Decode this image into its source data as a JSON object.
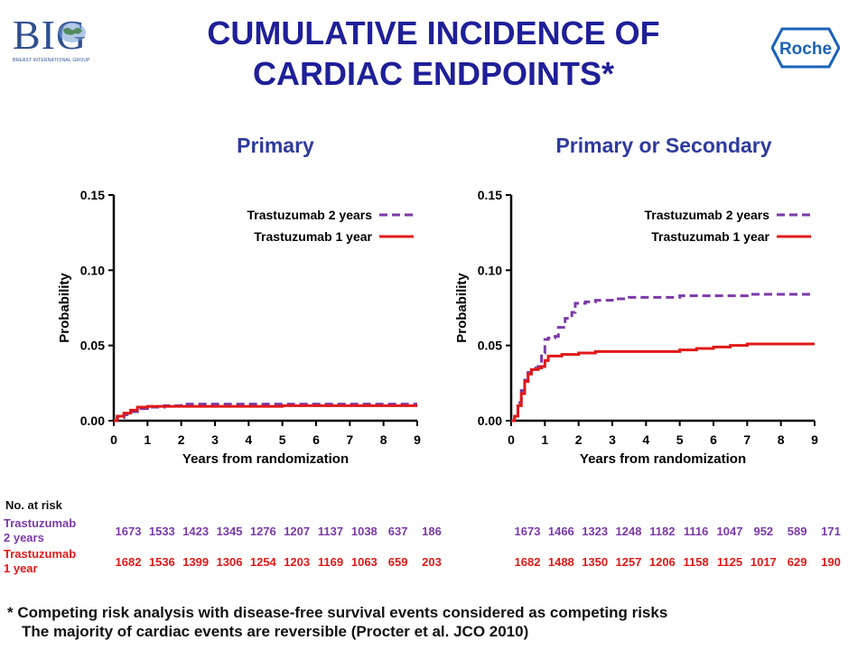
{
  "header": {
    "title": "CUMULATIVE INCIDENCE OF\nCARDIAC ENDPOINTS*",
    "left_logo_text": "BIG",
    "left_logo_sub": "BREAST INTERNATIONAL GROUP",
    "right_logo_text": "Roche"
  },
  "colors": {
    "title": "#1f1f99",
    "trastuzumab_2y": "#7b3aa8",
    "trastuzumab_1y": "#e01818",
    "roche": "#1c63b7"
  },
  "chart_data": [
    {
      "type": "line",
      "title": "Primary",
      "xlabel": "Years from randomization",
      "ylabel": "Probability",
      "xlim": [
        0,
        9
      ],
      "ylim": [
        0,
        0.15
      ],
      "xticks": [
        "0",
        "1",
        "2",
        "3",
        "4",
        "5",
        "6",
        "7",
        "8",
        "9"
      ],
      "yticks": [
        "0.00",
        "0.05",
        "0.10",
        "0.15"
      ],
      "legend_position": "top-right",
      "series": [
        {
          "name": "Trastuzumab 2 years",
          "style": "dashed",
          "x": [
            0,
            0.1,
            0.3,
            0.5,
            0.7,
            1.0,
            1.5,
            2.0,
            3.0,
            4.0,
            5.0,
            6.0,
            7.0,
            8.0,
            9.0
          ],
          "y": [
            0,
            0.002,
            0.004,
            0.006,
            0.008,
            0.009,
            0.01,
            0.011,
            0.011,
            0.011,
            0.011,
            0.011,
            0.011,
            0.011,
            0.011
          ]
        },
        {
          "name": "Trastuzumab 1 year",
          "style": "solid",
          "x": [
            0,
            0.1,
            0.3,
            0.5,
            0.7,
            1.0,
            1.5,
            2.0,
            3.0,
            4.0,
            5.0,
            6.0,
            7.0,
            8.0,
            9.0
          ],
          "y": [
            0,
            0.003,
            0.005,
            0.007,
            0.009,
            0.0095,
            0.0095,
            0.0095,
            0.0095,
            0.0095,
            0.01,
            0.01,
            0.01,
            0.01,
            0.01
          ]
        }
      ],
      "at_risk": {
        "trastuzumab_2y": [
          "1673",
          "1533",
          "1423",
          "1345",
          "1276",
          "1207",
          "1137",
          "1038",
          "637",
          "186"
        ],
        "trastuzumab_1y": [
          "1682",
          "1536",
          "1399",
          "1306",
          "1254",
          "1203",
          "1169",
          "1063",
          "659",
          "203"
        ]
      }
    },
    {
      "type": "line",
      "title": "Primary or Secondary",
      "xlabel": "Years from randomization",
      "ylabel": "Probability",
      "xlim": [
        0,
        9
      ],
      "ylim": [
        0,
        0.15
      ],
      "xticks": [
        "0",
        "1",
        "2",
        "3",
        "4",
        "5",
        "6",
        "7",
        "8",
        "9"
      ],
      "yticks": [
        "0.00",
        "0.05",
        "0.10",
        "0.15"
      ],
      "legend_position": "top-right",
      "series": [
        {
          "name": "Trastuzumab 2 years",
          "style": "dashed",
          "x": [
            0,
            0.1,
            0.2,
            0.3,
            0.4,
            0.5,
            0.6,
            0.8,
            0.9,
            1.0,
            1.1,
            1.3,
            1.4,
            1.6,
            1.8,
            1.9,
            2.2,
            2.5,
            3.0,
            3.5,
            4.0,
            5.0,
            6.0,
            7.0,
            8.0,
            9.0
          ],
          "y": [
            0,
            0.004,
            0.012,
            0.02,
            0.027,
            0.032,
            0.035,
            0.036,
            0.045,
            0.054,
            0.055,
            0.056,
            0.062,
            0.068,
            0.072,
            0.078,
            0.079,
            0.08,
            0.081,
            0.082,
            0.082,
            0.083,
            0.083,
            0.084,
            0.084,
            0.084
          ]
        },
        {
          "name": "Trastuzumab 1 year",
          "style": "solid",
          "x": [
            0,
            0.1,
            0.2,
            0.3,
            0.4,
            0.5,
            0.6,
            0.8,
            0.9,
            1.0,
            1.1,
            1.5,
            2.0,
            2.5,
            3.0,
            4.0,
            4.5,
            5.0,
            5.5,
            6.0,
            6.5,
            7.0,
            8.0,
            9.0
          ],
          "y": [
            0,
            0.003,
            0.01,
            0.018,
            0.026,
            0.031,
            0.034,
            0.035,
            0.036,
            0.04,
            0.043,
            0.044,
            0.045,
            0.046,
            0.046,
            0.046,
            0.046,
            0.047,
            0.048,
            0.049,
            0.05,
            0.051,
            0.051,
            0.051
          ]
        }
      ],
      "at_risk": {
        "trastuzumab_2y": [
          "1673",
          "1466",
          "1323",
          "1248",
          "1182",
          "1116",
          "1047",
          "952",
          "589",
          "171"
        ],
        "trastuzumab_1y": [
          "1682",
          "1488",
          "1350",
          "1257",
          "1206",
          "1158",
          "1125",
          "1017",
          "629",
          "190"
        ]
      }
    }
  ],
  "at_risk_table": {
    "header": "No. at risk",
    "label_2y": "Trastuzumab\n 2 years",
    "label_1y": "Trastuzumab\n1 year"
  },
  "footnote": {
    "line1": "* Competing risk analysis with disease-free survival events considered as competing risks",
    "line2": "The majority of cardiac events are reversible (Procter et al.  JCO 2010)"
  }
}
